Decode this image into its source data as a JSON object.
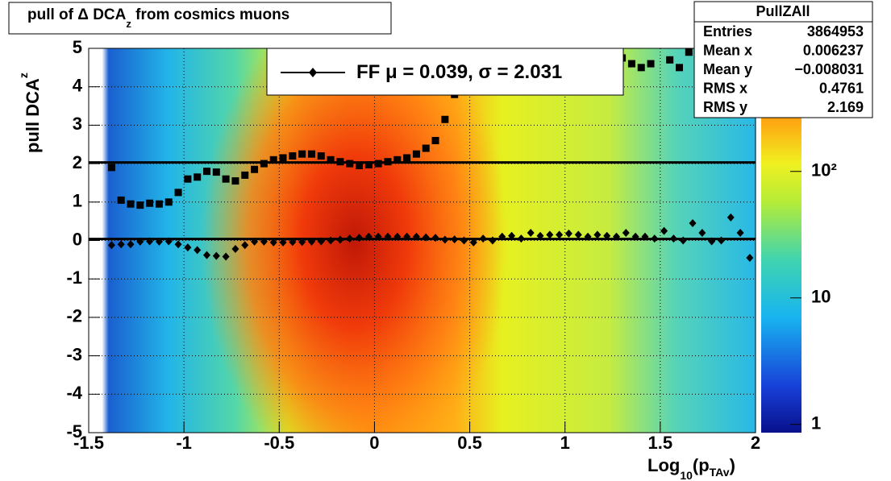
{
  "chart_data": {
    "type": "scatter",
    "title": {
      "main": "pull of Δ DCA",
      "sub": "z",
      "rest": " from cosmics muons"
    },
    "x_label": {
      "main": "Log",
      "sub1": "10",
      "mid": "(p",
      "sub2": "TAv",
      "end": ")"
    },
    "y_label": {
      "main": "pull DCA",
      "sub": "z"
    },
    "xlim": [
      -1.5,
      2
    ],
    "xticks": [
      -1.5,
      -1,
      -0.5,
      0,
      0.5,
      1,
      1.5,
      2
    ],
    "ylim": [
      -5,
      5
    ],
    "yticks": [
      -5,
      -4,
      -3,
      -2,
      -1,
      0,
      1,
      2,
      3,
      4,
      5
    ],
    "grid": true,
    "zlim": [
      0.86,
      940
    ],
    "zlog": true,
    "zticks": [
      1,
      10,
      {
        "value": 100,
        "label": "10²"
      }
    ],
    "series": [
      {
        "name": "mean",
        "color": "#000000",
        "marker": "diamond",
        "x": [
          -1.38,
          -1.33,
          -1.28,
          -1.23,
          -1.18,
          -1.13,
          -1.08,
          -1.03,
          -0.98,
          -0.93,
          -0.88,
          -0.83,
          -0.78,
          -0.73,
          -0.68,
          -0.63,
          -0.58,
          -0.53,
          -0.48,
          -0.43,
          -0.38,
          -0.33,
          -0.28,
          -0.23,
          -0.18,
          -0.13,
          -0.08,
          -0.03,
          0.02,
          0.07,
          0.12,
          0.17,
          0.22,
          0.27,
          0.32,
          0.37,
          0.42,
          0.47,
          0.52,
          0.57,
          0.62,
          0.67,
          0.72,
          0.77,
          0.82,
          0.87,
          0.92,
          0.97,
          1.02,
          1.07,
          1.12,
          1.17,
          1.22,
          1.27,
          1.32,
          1.37,
          1.42,
          1.47,
          1.52,
          1.57,
          1.62,
          1.67,
          1.72,
          1.77,
          1.82,
          1.87,
          1.92,
          1.97
        ],
        "values": [
          -0.12,
          -0.1,
          -0.1,
          -0.03,
          -0.02,
          -0.03,
          -0.02,
          -0.1,
          -0.18,
          -0.25,
          -0.38,
          -0.4,
          -0.42,
          -0.22,
          -0.12,
          -0.03,
          -0.03,
          -0.05,
          -0.05,
          -0.04,
          -0.04,
          -0.03,
          -0.02,
          0,
          0.02,
          0.05,
          0.07,
          0.1,
          0.1,
          0.1,
          0.1,
          0.1,
          0.1,
          0.08,
          0.07,
          0.02,
          0.03,
          0,
          -0.05,
          0.05,
          0,
          0.1,
          0.12,
          0.05,
          0.2,
          0.12,
          0.15,
          0.15,
          0.18,
          0.15,
          0.1,
          0.15,
          0.12,
          0.1,
          0.2,
          0.1,
          0.1,
          0.05,
          0.25,
          0.05,
          0,
          0.45,
          0.2,
          -0.02,
          0,
          0.6,
          0.2,
          -0.45
        ]
      },
      {
        "name": "rms",
        "color": "#000000",
        "marker": "square",
        "x": [
          -1.38,
          -1.33,
          -1.28,
          -1.23,
          -1.18,
          -1.13,
          -1.08,
          -1.03,
          -0.98,
          -0.93,
          -0.88,
          -0.83,
          -0.78,
          -0.73,
          -0.68,
          -0.63,
          -0.58,
          -0.53,
          -0.48,
          -0.43,
          -0.38,
          -0.33,
          -0.28,
          -0.23,
          -0.18,
          -0.13,
          -0.08,
          -0.03,
          0.02,
          0.07,
          0.12,
          0.17,
          0.22,
          0.27,
          0.32,
          0.37,
          0.42,
          1.3,
          1.35,
          1.4,
          1.45,
          1.55,
          1.6,
          1.65
        ],
        "values": [
          1.9,
          1.05,
          0.95,
          0.92,
          0.97,
          0.95,
          1,
          1.25,
          1.6,
          1.65,
          1.8,
          1.78,
          1.6,
          1.55,
          1.7,
          1.85,
          2,
          2.1,
          2.15,
          2.2,
          2.25,
          2.25,
          2.2,
          2.1,
          2.05,
          2,
          1.95,
          1.97,
          2,
          2.05,
          2.1,
          2.15,
          2.25,
          2.4,
          2.6,
          3.15,
          3.8,
          4.75,
          4.6,
          4.5,
          4.6,
          4.7,
          4.5,
          4.9
        ]
      }
    ],
    "legend": {
      "prefix": "FF μ = ",
      "mean": 0.039,
      "mid": ", σ = ",
      "sigma": 2.031
    },
    "stats": {
      "title": "PullZAll",
      "rows": [
        [
          "Entries",
          3864953
        ],
        [
          "Mean x",
          0.006237
        ],
        [
          "Mean y",
          "−0.008031"
        ],
        [
          "RMS x",
          0.4761
        ],
        [
          "RMS y",
          2.169
        ]
      ]
    }
  }
}
